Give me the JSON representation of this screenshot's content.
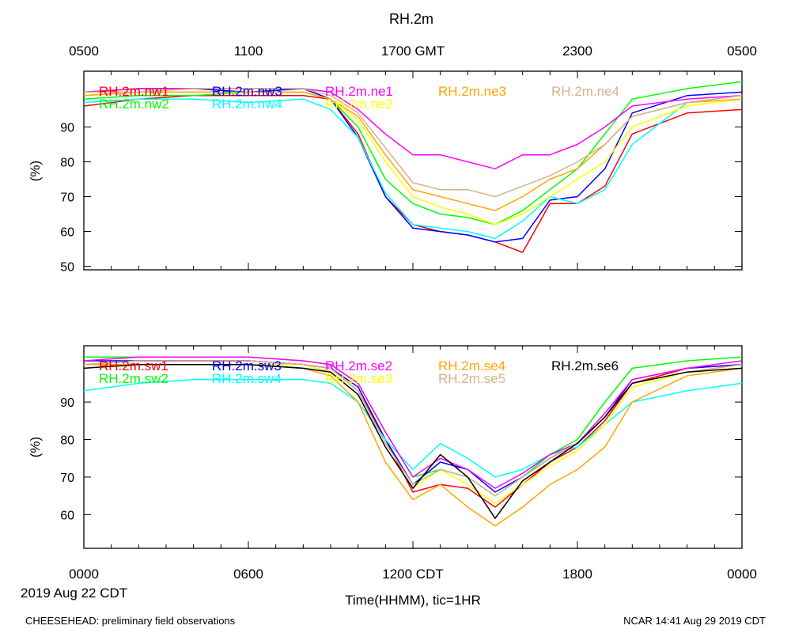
{
  "figure": {
    "title": "RH.2m",
    "xlabel": "Time(HHMM), tic=1HR",
    "date_label": "2019 Aug 22 CDT",
    "footer_left": "CHEESEHEAD: preliminary field observations",
    "footer_right": "NCAR 14:41 Aug 29 2019 CDT",
    "top_ticks": [
      "0500",
      "1100",
      "1700 GMT",
      "2300",
      "0500"
    ],
    "bottom_ticks": [
      "0000",
      "0600",
      "1200 CDT",
      "1800",
      "0000"
    ]
  },
  "chart_data": [
    {
      "type": "line",
      "title": "RH.2m",
      "ylabel": "(%)",
      "xlabel": "Time(HHMM), tic=1HR",
      "x_units": "hours CDT",
      "xlim": [
        0,
        24
      ],
      "ylim": [
        49,
        106
      ],
      "yticks": [
        50,
        60,
        70,
        80,
        90
      ],
      "x": [
        0,
        2,
        4,
        6,
        8,
        9,
        10,
        11,
        12,
        13,
        14,
        15,
        16,
        17,
        18,
        19,
        20,
        22,
        24
      ],
      "series": [
        {
          "name": "RH.2m.nw1",
          "color": "#ff0000",
          "values": [
            96,
            98,
            99,
            99,
            99,
            98,
            88,
            70,
            62,
            60,
            59,
            57,
            54,
            68,
            68,
            73,
            88,
            94,
            95
          ]
        },
        {
          "name": "RH.2m.nw2",
          "color": "#00ff00",
          "values": [
            98,
            99,
            99,
            100,
            100,
            98,
            90,
            75,
            68,
            65,
            64,
            62,
            66,
            72,
            78,
            88,
            98,
            101,
            103
          ]
        },
        {
          "name": "RH.2m.nw3",
          "color": "#0000ff",
          "values": [
            100,
            101,
            101,
            100,
            101,
            98,
            87,
            70,
            61,
            60,
            59,
            57,
            58,
            69,
            70,
            78,
            94,
            99,
            100
          ]
        },
        {
          "name": "RH.2m.nw4",
          "color": "#00ffff",
          "values": [
            97,
            98,
            98,
            97,
            98,
            95,
            87,
            71,
            62,
            61,
            60,
            58,
            63,
            70,
            68,
            72,
            85,
            97,
            99
          ]
        },
        {
          "name": "RH.2m.ne1",
          "color": "#ff00ff",
          "values": [
            100,
            101,
            101,
            101,
            101,
            100,
            95,
            88,
            82,
            82,
            80,
            78,
            82,
            82,
            85,
            90,
            96,
            98,
            99
          ]
        },
        {
          "name": "RH.2m.ne2",
          "color": "#ffff00",
          "values": [
            99,
            100,
            100,
            100,
            100,
            98,
            92,
            80,
            70,
            67,
            65,
            62,
            65,
            70,
            75,
            80,
            90,
            96,
            98
          ]
        },
        {
          "name": "RH.2m.ne3",
          "color": "#ffa500",
          "values": [
            99,
            100,
            100,
            100,
            100,
            98,
            93,
            82,
            72,
            70,
            68,
            66,
            70,
            75,
            78,
            85,
            93,
            97,
            98
          ]
        },
        {
          "name": "RH.2m.ne4",
          "color": "#d2b48c",
          "values": [
            100,
            100,
            101,
            101,
            101,
            99,
            94,
            84,
            74,
            72,
            72,
            70,
            73,
            76,
            80,
            85,
            93,
            97,
            99
          ]
        }
      ]
    },
    {
      "type": "line",
      "title": "",
      "ylabel": "(%)",
      "xlabel": "Time(HHMM), tic=1HR",
      "x_units": "hours CDT",
      "xlim": [
        0,
        24
      ],
      "ylim": [
        51,
        105
      ],
      "yticks": [
        60,
        70,
        80,
        90
      ],
      "x": [
        0,
        2,
        4,
        6,
        8,
        9,
        10,
        11,
        12,
        13,
        14,
        15,
        16,
        17,
        18,
        19,
        20,
        22,
        24
      ],
      "series": [
        {
          "name": "RH.2m.sw1",
          "color": "#ff0000",
          "values": [
            100,
            101,
            101,
            101,
            100,
            99,
            93,
            80,
            66,
            68,
            67,
            62,
            68,
            74,
            78,
            85,
            95,
            99,
            100
          ]
        },
        {
          "name": "RH.2m.sw2",
          "color": "#00ff00",
          "values": [
            102,
            102,
            102,
            102,
            101,
            100,
            95,
            82,
            70,
            72,
            70,
            65,
            70,
            76,
            80,
            90,
            99,
            101,
            102
          ]
        },
        {
          "name": "RH.2m.sw3",
          "color": "#0000ff",
          "values": [
            101,
            101,
            101,
            101,
            100,
            99,
            94,
            80,
            68,
            74,
            72,
            66,
            70,
            75,
            79,
            86,
            96,
            99,
            100
          ]
        },
        {
          "name": "RH.2m.sw4",
          "color": "#00ffff",
          "values": [
            93,
            95,
            96,
            96,
            96,
            95,
            90,
            80,
            72,
            79,
            75,
            70,
            72,
            76,
            78,
            84,
            90,
            93,
            95
          ]
        },
        {
          "name": "RH.2m.se2",
          "color": "#ff00ff",
          "values": [
            101,
            102,
            102,
            102,
            101,
            100,
            95,
            82,
            70,
            75,
            72,
            67,
            71,
            76,
            79,
            87,
            96,
            99,
            101
          ]
        },
        {
          "name": "RH.2m.se3",
          "color": "#ffff00",
          "values": [
            99,
            100,
            100,
            100,
            100,
            98,
            92,
            78,
            67,
            72,
            68,
            63,
            68,
            73,
            77,
            84,
            94,
            98,
            99
          ]
        },
        {
          "name": "RH.2m.se4",
          "color": "#ffa500",
          "values": [
            100,
            100,
            100,
            100,
            99,
            97,
            90,
            74,
            64,
            68,
            62,
            57,
            62,
            68,
            72,
            78,
            90,
            97,
            99
          ]
        },
        {
          "name": "RH.2m.se5",
          "color": "#d2b48c",
          "values": [
            100,
            101,
            101,
            101,
            100,
            99,
            93,
            79,
            68,
            72,
            70,
            65,
            70,
            75,
            79,
            86,
            95,
            98,
            100
          ]
        },
        {
          "name": "RH.2m.se6",
          "color": "#000000",
          "values": [
            99,
            100,
            100,
            100,
            99,
            98,
            92,
            78,
            67,
            76,
            70,
            59,
            69,
            74,
            79,
            86,
            95,
            98,
            99
          ]
        }
      ]
    }
  ]
}
